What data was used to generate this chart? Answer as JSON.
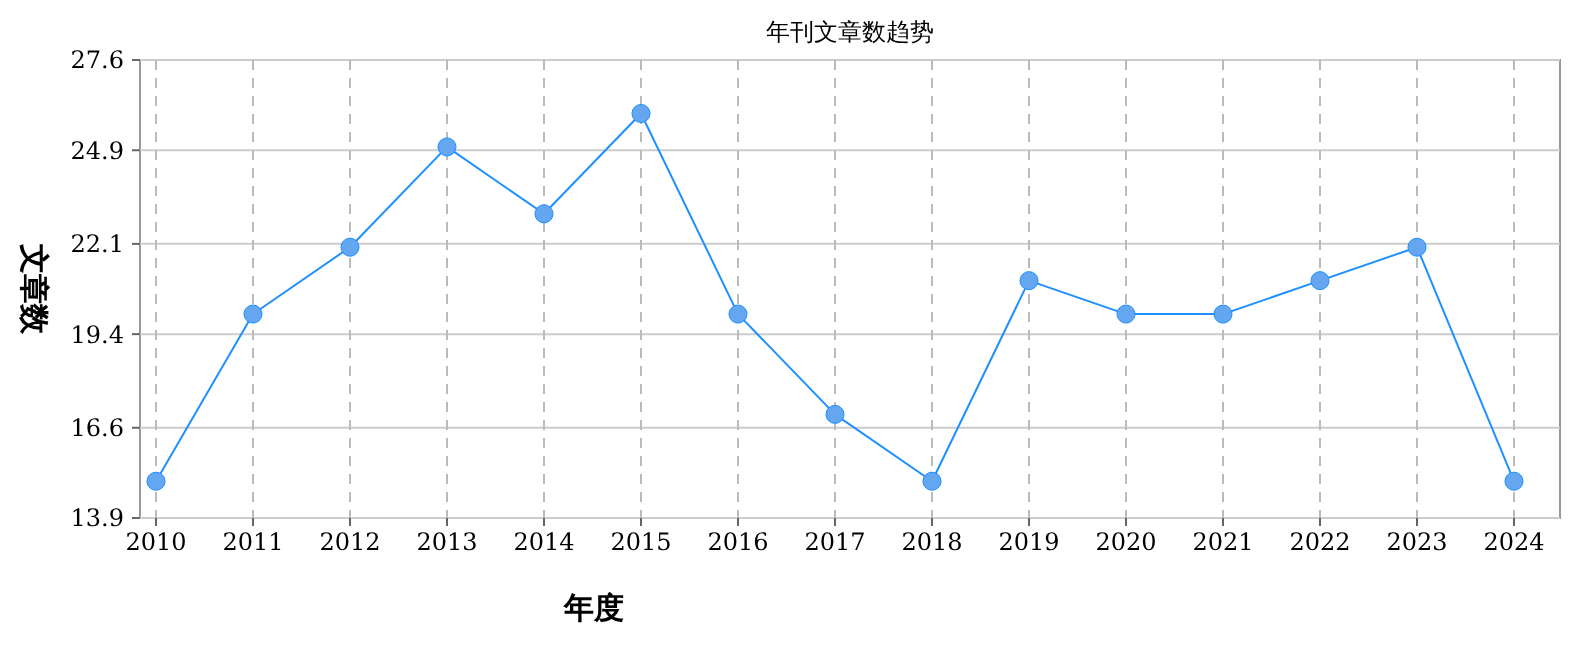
{
  "chart_data": {
    "type": "line",
    "title": "年刊文章数趋势",
    "xlabel": "年度",
    "ylabel": "文章数",
    "categories": [
      "2010",
      "2011",
      "2012",
      "2013",
      "2014",
      "2015",
      "2016",
      "2017",
      "2018",
      "2019",
      "2020",
      "2021",
      "2022",
      "2023",
      "2024"
    ],
    "series": [
      {
        "color": "#1e90ff",
        "values": [
          15,
          20,
          22,
          25,
          23,
          26,
          20,
          17,
          15,
          21,
          20,
          20,
          21,
          22,
          15
        ]
      }
    ],
    "ylim": [
      13.9,
      27.6
    ],
    "yticks": [
      13.9,
      16.6,
      19.4,
      22.1,
      24.9,
      27.6
    ],
    "grid": true,
    "marker": "circle",
    "line_style": "solid"
  }
}
